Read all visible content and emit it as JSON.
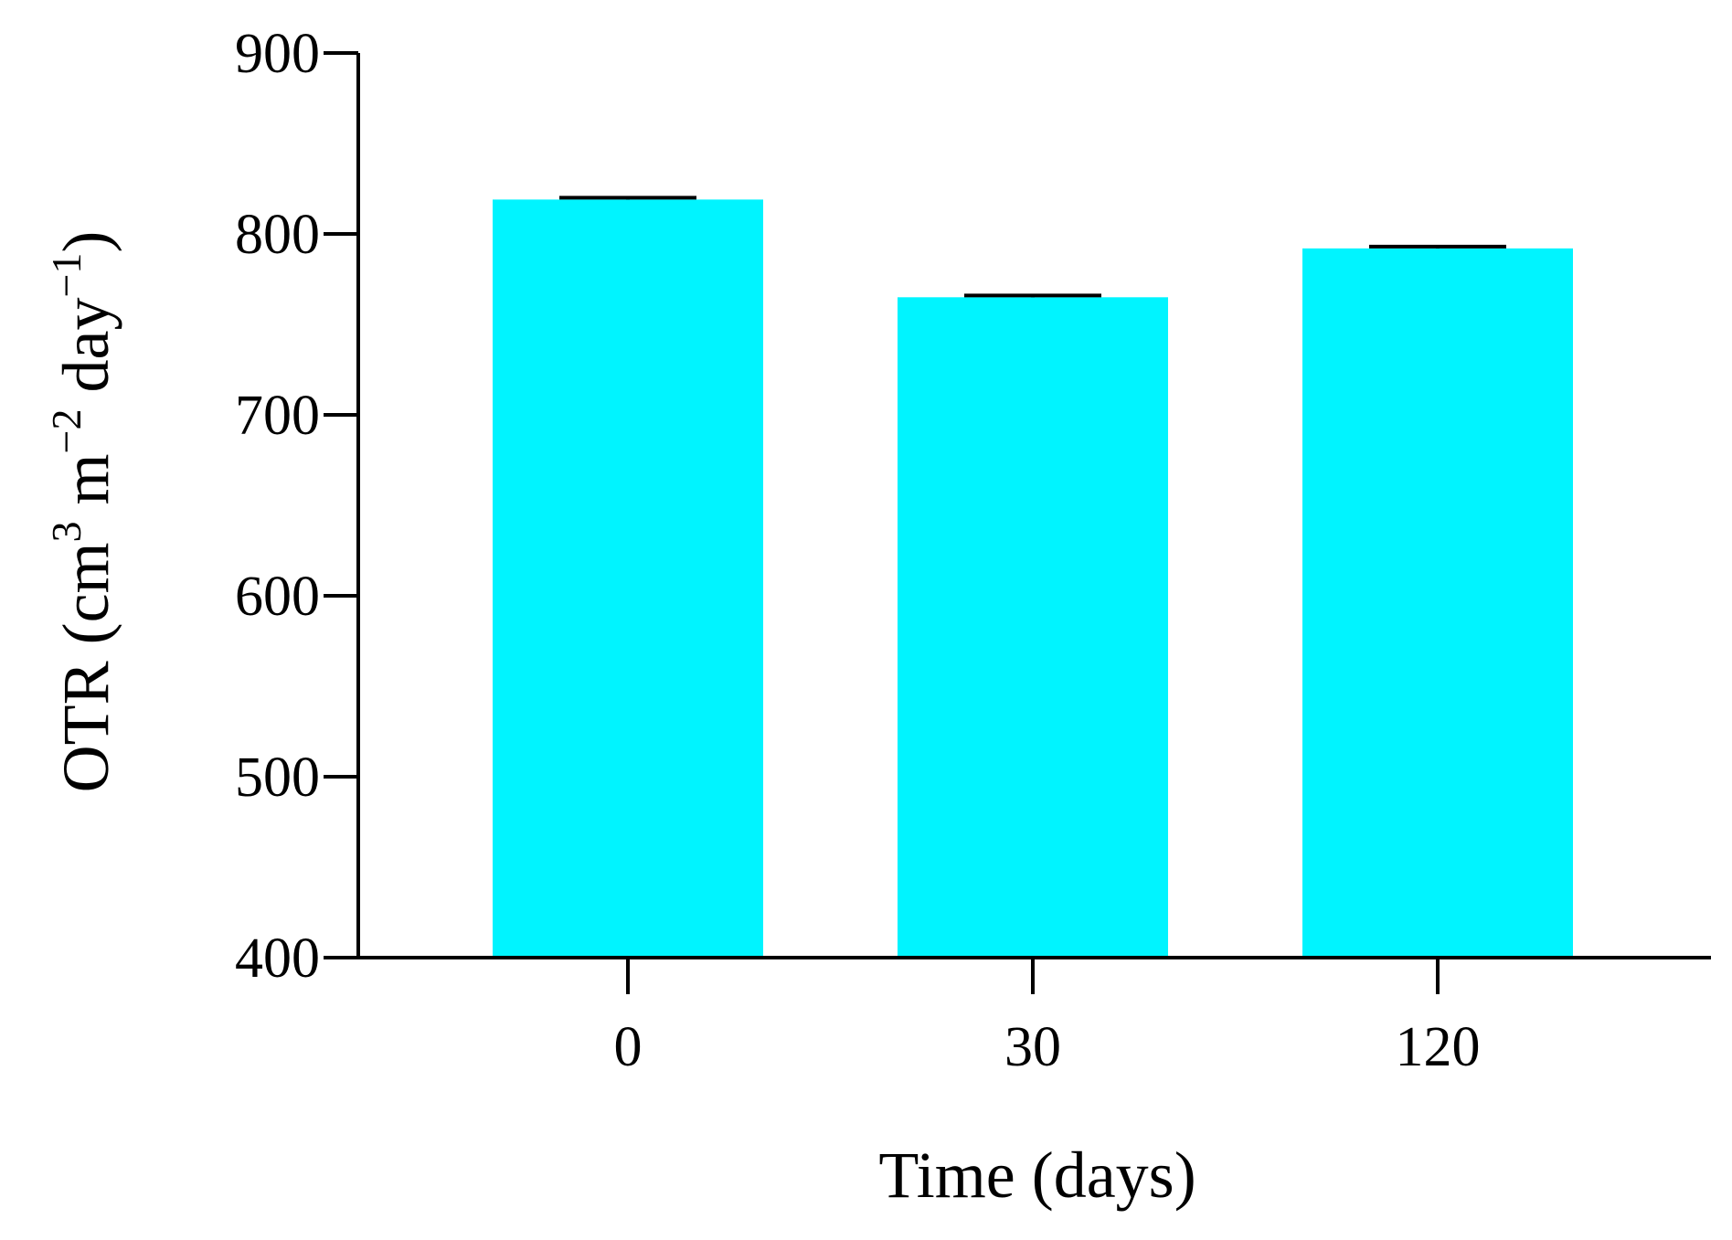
{
  "chart_data": {
    "type": "bar",
    "categories": [
      "0",
      "30",
      "120"
    ],
    "series": [
      {
        "values": [
          819,
          765,
          792
        ],
        "errors": [
          1,
          1,
          1
        ],
        "color": "#00F4FF"
      }
    ],
    "xlabel": "Time (days)",
    "ylabel": {
      "prefix": "OTR (cm",
      "sup1": "3",
      "mid1": " m",
      "sup2": "−2",
      "mid2": " day",
      "sup3": "−1",
      "suffix": ")"
    },
    "ylim": [
      400,
      900
    ],
    "yticks": [
      400,
      500,
      600,
      700,
      800,
      900
    ],
    "grid": false,
    "legend": "none"
  }
}
